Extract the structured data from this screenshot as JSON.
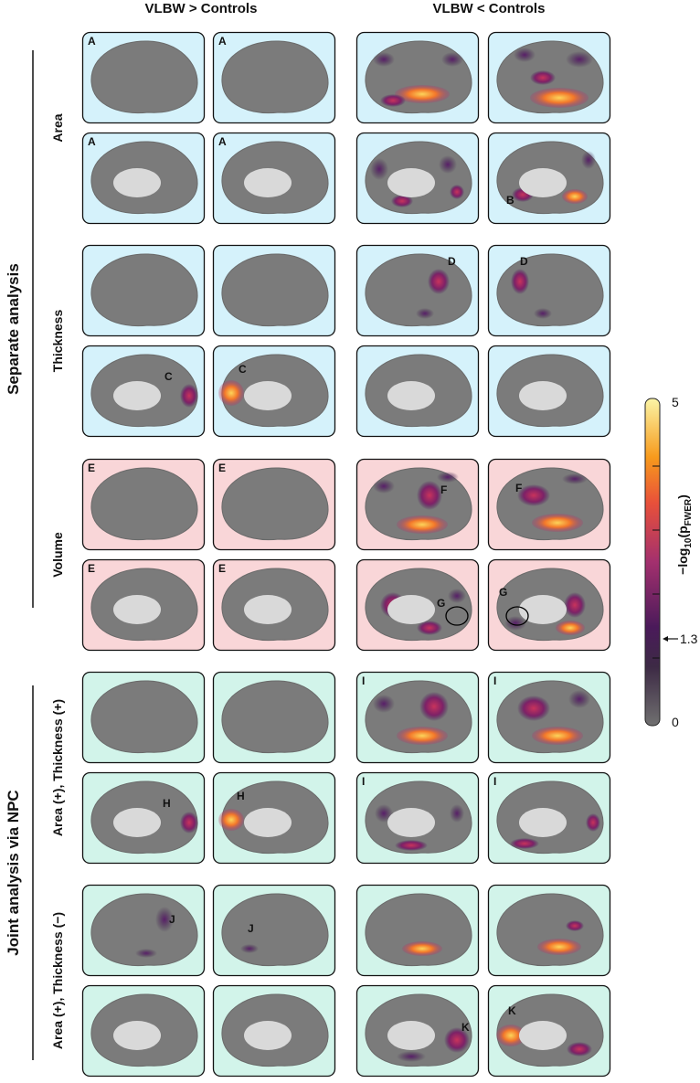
{
  "column_headers": [
    "VLBW > Controls",
    "VLBW < Controls"
  ],
  "sections": [
    "Separate analysis",
    "Joint analysis via NPC"
  ],
  "row_labels": [
    "Area",
    "Thickness",
    "Volume",
    "Area (+), Thickness (+)",
    "Area (+), Thickness (−)"
  ],
  "panel_letters": [
    [
      "A",
      "A",
      null,
      null
    ],
    [
      "A",
      "A",
      null,
      "B"
    ],
    [
      null,
      null,
      "D",
      "D"
    ],
    [
      "C",
      "C",
      null,
      null
    ],
    [
      "E",
      "E",
      "F",
      "F"
    ],
    [
      "E",
      "E",
      "G",
      "G"
    ],
    [
      null,
      null,
      "I",
      "I"
    ],
    [
      "H",
      "H",
      "I",
      "I"
    ],
    [
      "J",
      "J",
      null,
      null
    ],
    [
      null,
      null,
      "K",
      "K"
    ]
  ],
  "colorbar": {
    "label": [
      "−log",
      "10",
      "(p",
      "FWER",
      ")"
    ],
    "lim": [
      0,
      5
    ],
    "ticks": [
      0,
      5
    ],
    "minor_ticks": [
      1,
      2,
      3,
      4
    ],
    "threshold": 1.3
  }
}
